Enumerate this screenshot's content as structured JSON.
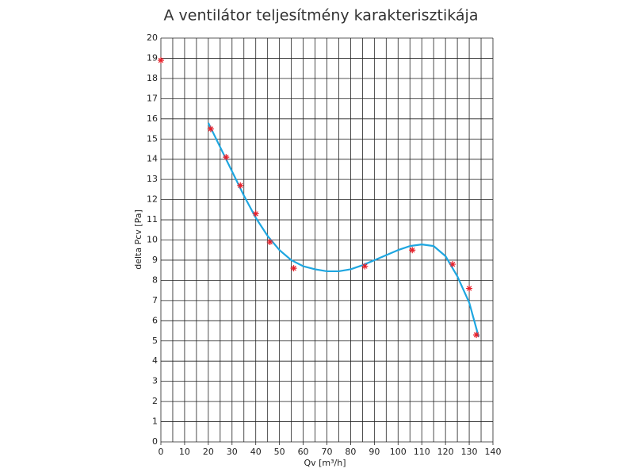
{
  "chart_data": {
    "type": "scatter",
    "title": "A ventilátor teljesítmény karakterisztikája",
    "x_label": "Qv  [m³/h]",
    "y_label": "delta  Pcv  [Pa]",
    "xlim": [
      0,
      140
    ],
    "ylim": [
      0,
      20
    ],
    "xticks": [
      0,
      10,
      20,
      30,
      40,
      50,
      60,
      70,
      80,
      90,
      100,
      110,
      120,
      130,
      140
    ],
    "xminorticks": [
      5,
      15,
      25,
      35,
      45,
      55,
      65,
      75,
      85,
      95,
      105,
      115,
      125,
      135
    ],
    "yticks": [
      0,
      1,
      2,
      3,
      4,
      5,
      6,
      7,
      8,
      9,
      10,
      11,
      12,
      13,
      14,
      15,
      16,
      17,
      18,
      19,
      20
    ],
    "grid": true,
    "series": [
      {
        "type": "scatter",
        "color": "#e8202a",
        "x": [
          0,
          21,
          27.5,
          33.5,
          40,
          46,
          56,
          86,
          106,
          123,
          130,
          133
        ],
        "values": [
          18.9,
          15.5,
          14.1,
          12.7,
          11.3,
          9.9,
          8.6,
          8.7,
          9.5,
          8.8,
          7.6,
          5.3
        ]
      },
      {
        "type": "line",
        "color": "#1ea6e0",
        "x": [
          20,
          25,
          30,
          35,
          40,
          45,
          50,
          55,
          60,
          65,
          70,
          75,
          80,
          85,
          90,
          95,
          100,
          105,
          110,
          115,
          120,
          125,
          130,
          134
        ],
        "values": [
          15.8,
          14.6,
          13.4,
          12.2,
          11.1,
          10.2,
          9.5,
          9.0,
          8.7,
          8.55,
          8.45,
          8.45,
          8.55,
          8.75,
          9.0,
          9.25,
          9.5,
          9.7,
          9.78,
          9.7,
          9.2,
          8.2,
          6.9,
          5.2
        ]
      }
    ]
  }
}
